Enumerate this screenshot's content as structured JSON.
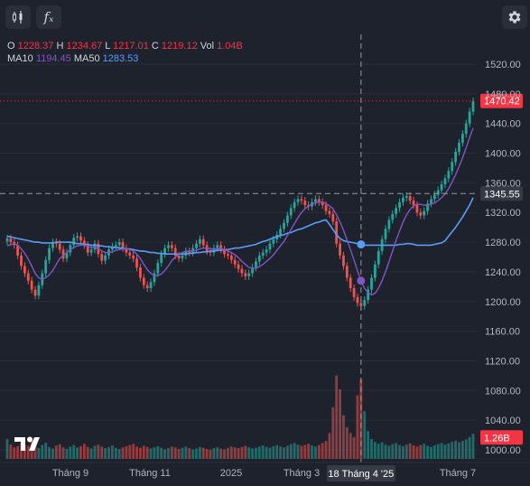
{
  "toolbar": {
    "indicators_icon": "candlestick-indicators-icon",
    "fx_label": "fₓ",
    "settings_icon": "gear-icon"
  },
  "legend": {
    "o_label": "O",
    "o_value": "1228.37",
    "h_label": "H",
    "h_value": "1234.67",
    "l_label": "L",
    "l_value": "1217.01",
    "c_label": "C",
    "c_value": "1219.12",
    "vol_label": "Vol",
    "vol_value": "1.04B",
    "ma10_label": "MA10",
    "ma10_value": "1194.45",
    "ma50_label": "MA50",
    "ma50_value": "1283.53"
  },
  "colors": {
    "background": "#1e222d",
    "up": "#26a69a",
    "down": "#ef5350",
    "ma10": "#7e57c2",
    "ma50": "#5b9cf6",
    "price_badge": "#f23645",
    "crosshair_badge": "#363a45"
  },
  "chart_data": {
    "type": "candlestick",
    "y_ticks": [
      "1520.00",
      "1480.00",
      "1440.00",
      "1400.00",
      "1360.00",
      "1320.00",
      "1280.00",
      "1240.00",
      "1200.00",
      "1160.00",
      "1120.00",
      "1080.00",
      "1040.00",
      "1000.00"
    ],
    "ylim": [
      1000,
      1520
    ],
    "x_ticks": [
      "Tháng 9",
      "Tháng 11",
      "2025",
      "Tháng 3",
      "Tháng 7"
    ],
    "crosshair_date": "18 Tháng 4 '25",
    "crosshair_price": "1345.55",
    "last_price": "1470.42",
    "last_volume": "1.26B",
    "close_series": [
      1285,
      1280,
      1276,
      1262,
      1248,
      1238,
      1228,
      1216,
      1208,
      1222,
      1238,
      1256,
      1272,
      1280,
      1278,
      1270,
      1258,
      1266,
      1276,
      1286,
      1288,
      1282,
      1276,
      1266,
      1270,
      1278,
      1264,
      1255,
      1262,
      1270,
      1274,
      1276,
      1280,
      1272,
      1266,
      1262,
      1258,
      1246,
      1232,
      1222,
      1218,
      1226,
      1238,
      1252,
      1264,
      1272,
      1276,
      1272,
      1262,
      1258,
      1262,
      1268,
      1266,
      1272,
      1278,
      1284,
      1276,
      1268,
      1266,
      1272,
      1276,
      1270,
      1264,
      1262,
      1256,
      1250,
      1244,
      1238,
      1234,
      1238,
      1246,
      1254,
      1262,
      1266,
      1270,
      1278,
      1284,
      1290,
      1298,
      1306,
      1316,
      1326,
      1334,
      1338,
      1336,
      1330,
      1328,
      1334,
      1338,
      1334,
      1330,
      1322,
      1318,
      1308,
      1278,
      1262,
      1248,
      1232,
      1218,
      1206,
      1198,
      1194,
      1202,
      1216,
      1232,
      1250,
      1268,
      1284,
      1298,
      1310,
      1318,
      1326,
      1334,
      1340,
      1342,
      1336,
      1330,
      1320,
      1316,
      1322,
      1332,
      1338,
      1344,
      1350,
      1358,
      1366,
      1376,
      1388,
      1402,
      1414,
      1426,
      1440,
      1456,
      1470
    ],
    "ma10_series": [
      1275,
      1277,
      1278,
      1276,
      1271,
      1265,
      1257,
      1248,
      1238,
      1232,
      1230,
      1232,
      1236,
      1242,
      1250,
      1258,
      1262,
      1266,
      1270,
      1273,
      1275,
      1276,
      1276,
      1274,
      1273,
      1273,
      1271,
      1268,
      1266,
      1266,
      1267,
      1269,
      1270,
      1271,
      1271,
      1270,
      1268,
      1264,
      1258,
      1250,
      1243,
      1238,
      1235,
      1235,
      1237,
      1242,
      1248,
      1255,
      1260,
      1264,
      1266,
      1268,
      1268,
      1268,
      1269,
      1271,
      1272,
      1272,
      1271,
      1271,
      1271,
      1271,
      1270,
      1268,
      1266,
      1263,
      1259,
      1254,
      1250,
      1246,
      1245,
      1245,
      1247,
      1250,
      1254,
      1258,
      1263,
      1269,
      1275,
      1281,
      1289,
      1297,
      1305,
      1313,
      1320,
      1325,
      1329,
      1331,
      1333,
      1334,
      1334,
      1332,
      1329,
      1325,
      1317,
      1307,
      1296,
      1283,
      1270,
      1256,
      1241,
      1228,
      1218,
      1212,
      1209,
      1211,
      1218,
      1228,
      1240,
      1254,
      1268,
      1282,
      1295,
      1307,
      1317,
      1324,
      1329,
      1331,
      1331,
      1330,
      1330,
      1331,
      1333,
      1336,
      1340,
      1345,
      1352,
      1361,
      1371,
      1382,
      1394,
      1407,
      1421,
      1434
    ],
    "ma50_series": [
      1288,
      1287,
      1286,
      1285,
      1284,
      1283,
      1282,
      1281,
      1280,
      1280,
      1279,
      1279,
      1279,
      1279,
      1280,
      1280,
      1280,
      1280,
      1280,
      1279,
      1278,
      1278,
      1277,
      1277,
      1276,
      1276,
      1275,
      1275,
      1274,
      1274,
      1273,
      1273,
      1272,
      1272,
      1271,
      1271,
      1270,
      1269,
      1268,
      1268,
      1267,
      1266,
      1266,
      1265,
      1265,
      1264,
      1264,
      1264,
      1264,
      1264,
      1264,
      1264,
      1265,
      1265,
      1266,
      1266,
      1267,
      1267,
      1268,
      1268,
      1269,
      1269,
      1270,
      1270,
      1271,
      1272,
      1272,
      1273,
      1274,
      1275,
      1276,
      1277,
      1279,
      1281,
      1282,
      1284,
      1286,
      1287,
      1289,
      1290,
      1292,
      1293,
      1295,
      1297,
      1298,
      1300,
      1302,
      1304,
      1306,
      1307,
      1309,
      1310,
      1304,
      1297,
      1290,
      1285,
      1282,
      1281,
      1280,
      1279,
      1278,
      1277,
      1276,
      1276,
      1276,
      1276,
      1276,
      1276,
      1276,
      1276,
      1276,
      1276,
      1277,
      1277,
      1278,
      1278,
      1277,
      1276,
      1276,
      1276,
      1276,
      1276,
      1277,
      1278,
      1279,
      1282,
      1288,
      1294,
      1300,
      1307,
      1314,
      1322,
      1330,
      1340
    ],
    "volume_series": [
      1.0,
      0.72,
      0.58,
      0.64,
      0.8,
      0.7,
      0.66,
      0.9,
      0.62,
      0.55,
      0.7,
      0.82,
      0.6,
      0.52,
      0.68,
      0.74,
      0.58,
      0.5,
      0.62,
      0.7,
      0.58,
      0.64,
      0.76,
      0.6,
      0.52,
      0.66,
      0.72,
      0.62,
      0.54,
      0.6,
      0.68,
      0.56,
      0.5,
      0.58,
      0.64,
      0.7,
      0.76,
      0.62,
      0.56,
      0.66,
      0.6,
      0.52,
      0.58,
      0.64,
      0.56,
      0.48,
      0.54,
      0.62,
      0.58,
      0.5,
      0.56,
      0.62,
      0.54,
      0.48,
      0.52,
      0.6,
      0.56,
      0.5,
      0.46,
      0.54,
      0.58,
      0.52,
      0.48,
      0.56,
      0.62,
      0.58,
      0.54,
      0.6,
      0.66,
      0.58,
      0.52,
      0.56,
      0.62,
      0.68,
      0.6,
      0.56,
      0.64,
      0.7,
      0.62,
      0.58,
      0.66,
      0.74,
      0.8,
      0.72,
      0.66,
      0.7,
      0.76,
      0.68,
      0.62,
      0.7,
      0.8,
      0.9,
      1.3,
      2.6,
      4.2,
      3.5,
      2.2,
      1.6,
      1.3,
      1.1,
      3.2,
      4.0,
      2.4,
      1.4,
      1.0,
      0.86,
      0.76,
      0.84,
      0.72,
      0.66,
      0.74,
      0.8,
      0.7,
      0.64,
      0.72,
      0.78,
      0.68,
      0.62,
      0.7,
      0.76,
      0.66,
      0.6,
      0.68,
      0.74,
      0.8,
      0.72,
      0.78,
      0.86,
      0.92,
      0.84,
      0.9,
      0.98,
      1.1,
      1.26
    ]
  }
}
